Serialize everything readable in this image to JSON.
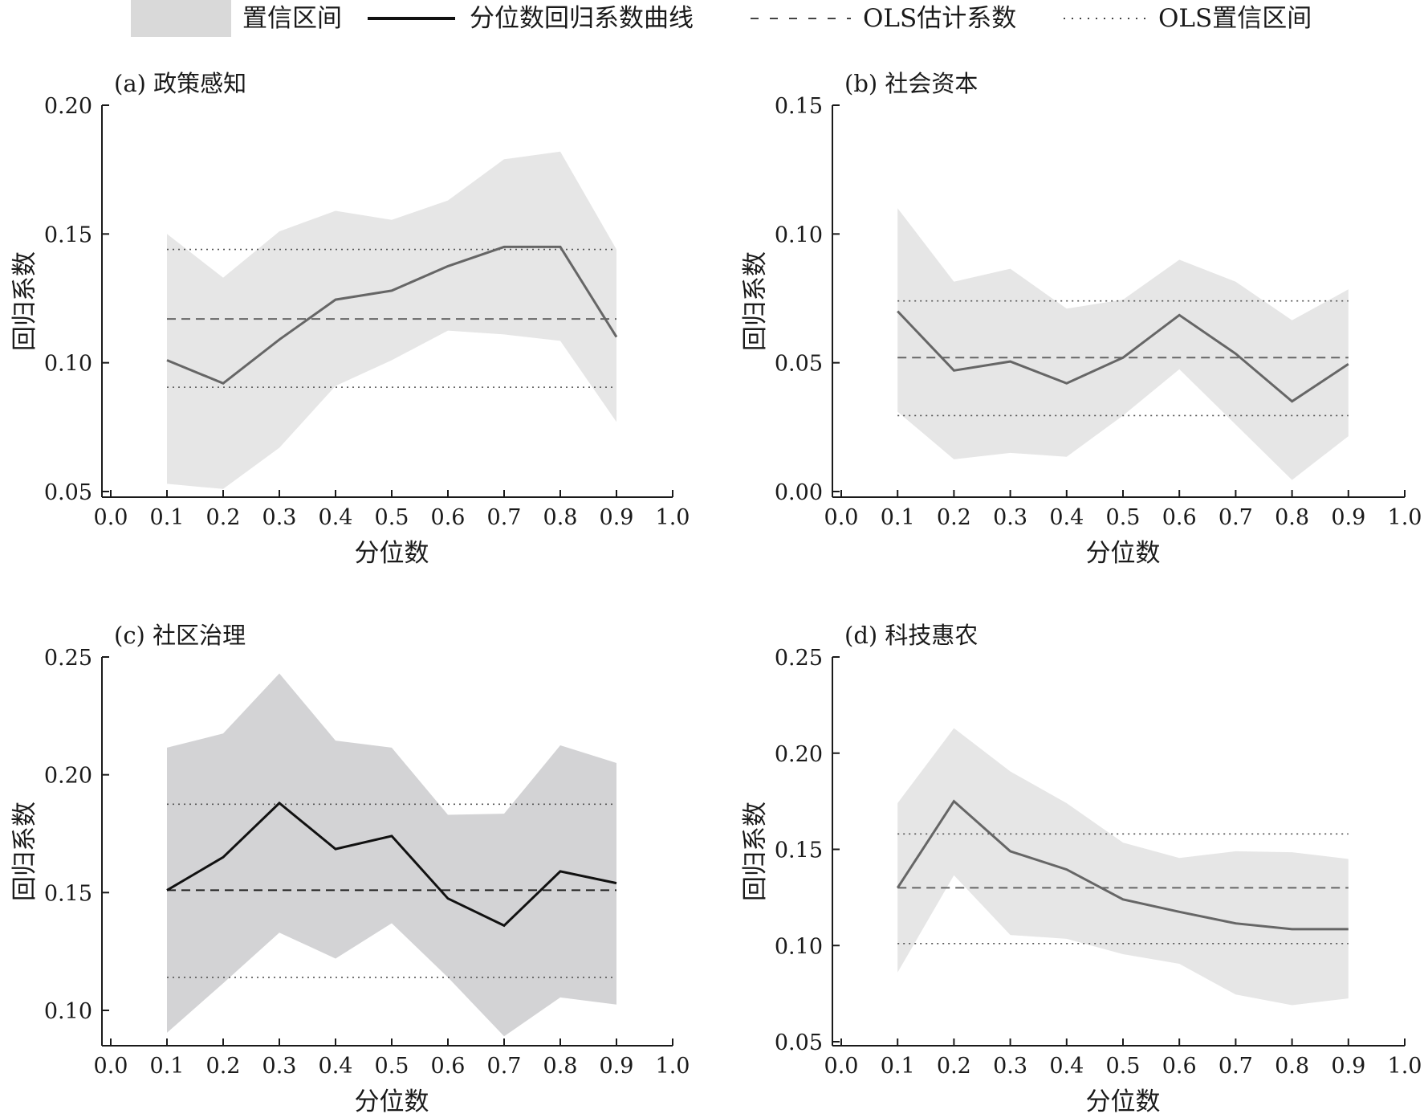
{
  "legend": {
    "ci_label": "置信区间",
    "qr_label": "分位数回归系数曲线",
    "ols_label": "OLS估计系数",
    "ols_ci_label": "OLS置信区间"
  },
  "colors": {
    "band_light": "#e6e6e6",
    "band_dark": "#d3d3d5",
    "line_gray": "#666666",
    "line_black": "#111111",
    "axis": "#1a1a1a"
  },
  "chart_data": [
    {
      "type": "line",
      "title": "(a) 政策感知",
      "xlabel": "分位数",
      "ylabel": "回归系数",
      "xlim": [
        0.0,
        1.0
      ],
      "ylim": [
        0.05,
        0.2
      ],
      "x_ticks": [
        "0.0",
        "0.1",
        "0.2",
        "0.3",
        "0.4",
        "0.5",
        "0.6",
        "0.7",
        "0.8",
        "0.9",
        "1.0"
      ],
      "y_ticks": [
        "0.05",
        "0.10",
        "0.15",
        "0.20"
      ],
      "x": [
        0.1,
        0.2,
        0.3,
        0.4,
        0.5,
        0.6,
        0.7,
        0.8,
        0.9
      ],
      "qr_coef": [
        0.101,
        0.092,
        0.109,
        0.1245,
        0.128,
        0.1375,
        0.145,
        0.145,
        0.11
      ],
      "ci_upper": [
        0.15,
        0.133,
        0.151,
        0.159,
        0.1555,
        0.163,
        0.179,
        0.182,
        0.144
      ],
      "ci_lower": [
        0.053,
        0.051,
        0.067,
        0.091,
        0.101,
        0.1125,
        0.111,
        0.1085,
        0.077
      ],
      "ols_coef": 0.117,
      "ols_ci": [
        0.0905,
        0.144
      ],
      "band": "light",
      "line": "gray"
    },
    {
      "type": "line",
      "title": "(b) 社会资本",
      "xlabel": "分位数",
      "ylabel": "回归系数",
      "xlim": [
        0.0,
        1.0
      ],
      "ylim": [
        0.0,
        0.15
      ],
      "x_ticks": [
        "0.0",
        "0.1",
        "0.2",
        "0.3",
        "0.4",
        "0.5",
        "0.6",
        "0.7",
        "0.8",
        "0.9",
        "1.0"
      ],
      "y_ticks": [
        "0.00",
        "0.05",
        "0.10",
        "0.15"
      ],
      "x": [
        0.1,
        0.2,
        0.3,
        0.4,
        0.5,
        0.6,
        0.7,
        0.8,
        0.9
      ],
      "qr_coef": [
        0.07,
        0.047,
        0.0505,
        0.042,
        0.052,
        0.0685,
        0.0535,
        0.035,
        0.0495
      ],
      "ci_upper": [
        0.11,
        0.0815,
        0.0865,
        0.071,
        0.0745,
        0.09,
        0.0815,
        0.0665,
        0.0785
      ],
      "ci_lower": [
        0.031,
        0.0125,
        0.015,
        0.0135,
        0.0295,
        0.0475,
        0.026,
        0.0045,
        0.0215
      ],
      "ols_coef": 0.052,
      "ols_ci": [
        0.0295,
        0.074
      ],
      "band": "light",
      "line": "gray"
    },
    {
      "type": "line",
      "title": "(c) 社区治理",
      "xlabel": "分位数",
      "ylabel": "回归系数",
      "xlim": [
        0.0,
        1.0
      ],
      "ylim": [
        0.09,
        0.25
      ],
      "x_ticks": [
        "0.0",
        "0.1",
        "0.2",
        "0.3",
        "0.4",
        "0.5",
        "0.6",
        "0.7",
        "0.8",
        "0.9",
        "1.0"
      ],
      "y_ticks": [
        "0.10",
        "0.15",
        "0.20",
        "0.25"
      ],
      "x": [
        0.1,
        0.2,
        0.3,
        0.4,
        0.5,
        0.6,
        0.7,
        0.8,
        0.9
      ],
      "qr_coef": [
        0.151,
        0.165,
        0.188,
        0.1685,
        0.174,
        0.1475,
        0.136,
        0.159,
        0.154
      ],
      "ci_upper": [
        0.2115,
        0.2175,
        0.243,
        0.2145,
        0.2115,
        0.183,
        0.1835,
        0.2125,
        0.205
      ],
      "ci_lower": [
        0.0905,
        0.1115,
        0.133,
        0.122,
        0.137,
        0.114,
        0.089,
        0.1055,
        0.1025
      ],
      "ols_coef": 0.151,
      "ols_ci": [
        0.114,
        0.1875
      ],
      "band": "dark",
      "line": "black"
    },
    {
      "type": "line",
      "title": "(d) 科技惠农",
      "xlabel": "分位数",
      "ylabel": "回归系数",
      "xlim": [
        0.0,
        1.0
      ],
      "ylim": [
        0.05,
        0.25
      ],
      "x_ticks": [
        "0.0",
        "0.1",
        "0.2",
        "0.3",
        "0.4",
        "0.5",
        "0.6",
        "0.7",
        "0.8",
        "0.9",
        "1.0"
      ],
      "y_ticks": [
        "0.05",
        "0.10",
        "0.15",
        "0.20",
        "0.25"
      ],
      "x": [
        0.1,
        0.2,
        0.3,
        0.4,
        0.5,
        0.6,
        0.7,
        0.8,
        0.9
      ],
      "qr_coef": [
        0.13,
        0.175,
        0.149,
        0.1395,
        0.124,
        0.1175,
        0.1115,
        0.1085,
        0.1085
      ],
      "ci_upper": [
        0.174,
        0.213,
        0.1905,
        0.174,
        0.1535,
        0.1455,
        0.149,
        0.1485,
        0.145
      ],
      "ci_lower": [
        0.086,
        0.1365,
        0.1055,
        0.1035,
        0.0955,
        0.0905,
        0.0745,
        0.069,
        0.0725
      ],
      "ols_coef": 0.13,
      "ols_ci": [
        0.101,
        0.158
      ],
      "band": "light",
      "line": "gray"
    }
  ]
}
